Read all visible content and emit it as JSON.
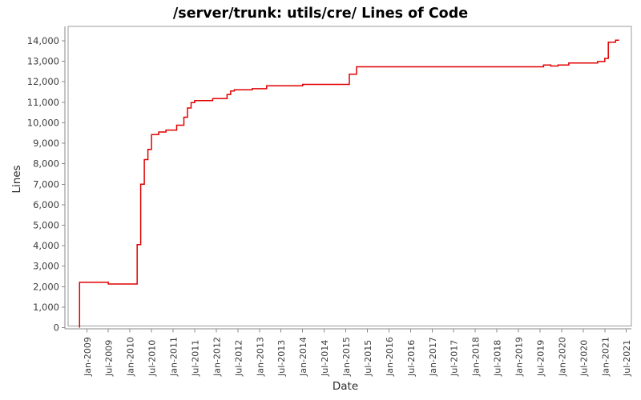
{
  "chart": {
    "title": "/server/trunk: utils/cre/ Lines of Code",
    "xlabel": "Date",
    "ylabel": "Lines"
  },
  "chart_data": {
    "type": "line",
    "step": true,
    "title": "/server/trunk: utils/cre/ Lines of Code",
    "xlabel": "Date",
    "ylabel": "Lines",
    "line_color": "#e10000",
    "frame_color": "#9b9b9b",
    "tick_color": "#8a8a8a",
    "legend": "none",
    "grid": false,
    "ylim": [
      0,
      14700
    ],
    "xlim": [
      "2008-10",
      "2021-09"
    ],
    "y_tick_values": [
      0,
      1000,
      2000,
      3000,
      4000,
      5000,
      6000,
      7000,
      8000,
      9000,
      10000,
      11000,
      12000,
      13000,
      14000
    ],
    "y_tick_labels": [
      "0",
      "1,000",
      "2,000",
      "3,000",
      "4,000",
      "5,000",
      "6,000",
      "7,000",
      "8,000",
      "9,000",
      "10,000",
      "11,000",
      "12,000",
      "13,000",
      "14,000"
    ],
    "x_ticks": [
      "Jan-2009",
      "Jul-2009",
      "Jan-2010",
      "Jul-2010",
      "Jan-2011",
      "Jul-2011",
      "Jan-2012",
      "Jul-2012",
      "Jan-2013",
      "Jul-2013",
      "Jan-2014",
      "Jul-2014",
      "Jan-2015",
      "Jul-2015",
      "Jan-2016",
      "Jul-2016",
      "Jan-2017",
      "Jul-2017",
      "Jan-2018",
      "Jul-2018",
      "Jan-2019",
      "Jul-2019",
      "Jan-2020",
      "Jul-2020",
      "Jan-2021",
      "Jul-2021"
    ],
    "points": [
      [
        "2008-11",
        0
      ],
      [
        "2008-11",
        2210
      ],
      [
        "2009-07",
        2130
      ],
      [
        "2010-03",
        2900
      ],
      [
        "2010-03",
        4050
      ],
      [
        "2010-04",
        5350
      ],
      [
        "2010-04",
        7000
      ],
      [
        "2010-05",
        7900
      ],
      [
        "2010-05",
        8200
      ],
      [
        "2010-06",
        8700
      ],
      [
        "2010-07",
        9100
      ],
      [
        "2010-07",
        9420
      ],
      [
        "2010-09",
        9550
      ],
      [
        "2010-11",
        9640
      ],
      [
        "2011-02",
        9880
      ],
      [
        "2011-04",
        10270
      ],
      [
        "2011-05",
        10720
      ],
      [
        "2011-06",
        10980
      ],
      [
        "2011-07",
        11080
      ],
      [
        "2011-12",
        11180
      ],
      [
        "2012-04",
        11380
      ],
      [
        "2012-05",
        11550
      ],
      [
        "2012-06",
        11610
      ],
      [
        "2012-11",
        11660
      ],
      [
        "2013-03",
        11800
      ],
      [
        "2014-01",
        11870
      ],
      [
        "2015-02",
        12370
      ],
      [
        "2015-04",
        12730
      ],
      [
        "2019-08",
        12820
      ],
      [
        "2019-10",
        12770
      ],
      [
        "2019-12",
        12820
      ],
      [
        "2020-03",
        12920
      ],
      [
        "2020-11",
        12990
      ],
      [
        "2021-01",
        13050
      ],
      [
        "2021-01",
        13140
      ],
      [
        "2021-02",
        13260
      ],
      [
        "2021-02",
        13930
      ],
      [
        "2021-04",
        14030
      ],
      [
        "2021-05",
        14030
      ]
    ]
  }
}
